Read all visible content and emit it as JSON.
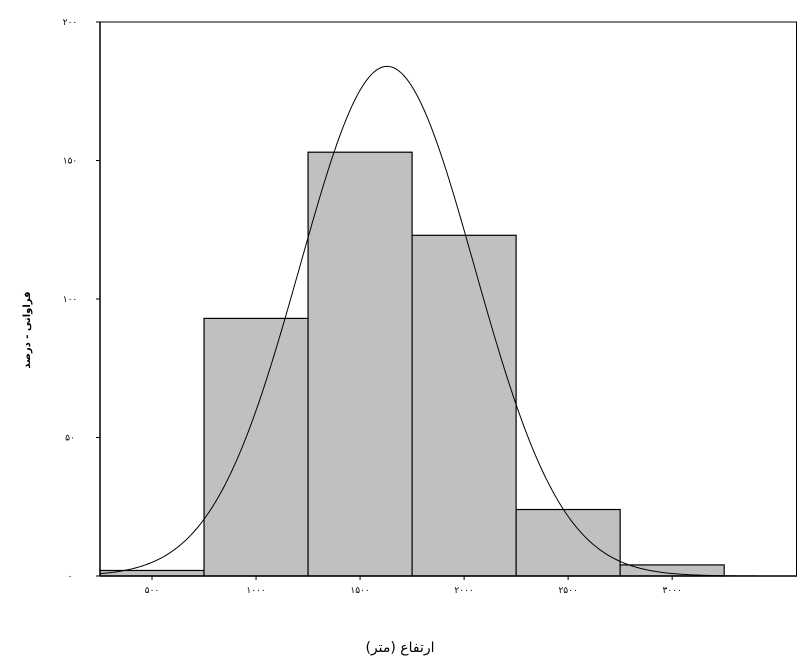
{
  "chart_data": {
    "type": "bar",
    "xlabel": "ارتفاع (متر)",
    "ylabel": "فراوانی - درصد",
    "xlim": [
      250,
      3600
    ],
    "ylim": [
      0,
      200
    ],
    "yticks": [
      0,
      50,
      100,
      150,
      200
    ],
    "ytick_labels": [
      "۰",
      "۵۰",
      "۱۰۰",
      "۱۵۰",
      "۲۰۰"
    ],
    "xticks": [
      500,
      1000,
      1500,
      2000,
      2500,
      3000
    ],
    "xtick_labels": [
      "۵۰۰",
      "۱۰۰۰",
      "۱۵۰۰",
      "۲۰۰۰",
      "۲۵۰۰",
      "۳۰۰۰"
    ],
    "bins": [
      {
        "start": 250,
        "end": 750,
        "value": 2
      },
      {
        "start": 750,
        "end": 1250,
        "value": 93
      },
      {
        "start": 1250,
        "end": 1750,
        "value": 153
      },
      {
        "start": 1750,
        "end": 2250,
        "value": 123
      },
      {
        "start": 2250,
        "end": 2750,
        "value": 24
      },
      {
        "start": 2750,
        "end": 3250,
        "value": 4
      }
    ],
    "normal_curve": {
      "mean": 1630,
      "sd": 420,
      "peak": 184
    },
    "bar_color": "#c0c0c0",
    "bar_edge_color": "#000000",
    "grid": false
  }
}
